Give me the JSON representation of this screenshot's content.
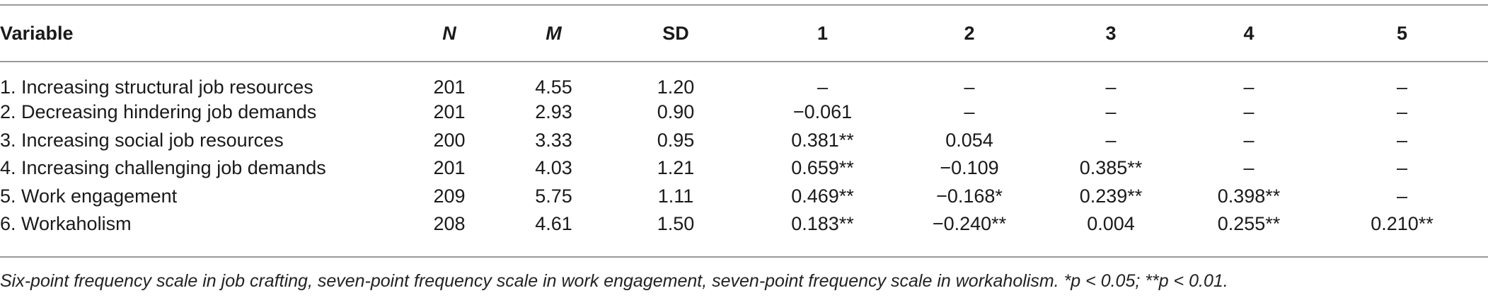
{
  "table": {
    "headers": [
      "Variable",
      "N",
      "M",
      "SD",
      "1",
      "2",
      "3",
      "4",
      "5"
    ],
    "rows": [
      [
        "1. Increasing structural job resources",
        "201",
        "4.55",
        "1.20",
        "–",
        "–",
        "–",
        "–",
        "–"
      ],
      [
        "2. Decreasing hindering job demands",
        "201",
        "2.93",
        "0.90",
        "−0.061",
        "–",
        "–",
        "–",
        "–"
      ],
      [
        "3. Increasing social job resources",
        "200",
        "3.33",
        "0.95",
        "0.381**",
        "0.054",
        "–",
        "–",
        "–"
      ],
      [
        "4. Increasing challenging job demands",
        "201",
        "4.03",
        "1.21",
        "0.659**",
        "−0.109",
        "0.385**",
        "–",
        "–"
      ],
      [
        "5. Work engagement",
        "209",
        "5.75",
        "1.11",
        "0.469**",
        "−0.168*",
        "0.239**",
        "0.398**",
        "–"
      ],
      [
        "6. Workaholism",
        "208",
        "4.61",
        "1.50",
        "0.183**",
        "−0.240**",
        "0.004",
        "0.255**",
        "0.210**"
      ]
    ]
  },
  "note": "Six-point frequency scale in job crafting, seven-point frequency scale in work engagement, seven-point frequency scale in workaholism. *p < 0.05;  **p < 0.01."
}
